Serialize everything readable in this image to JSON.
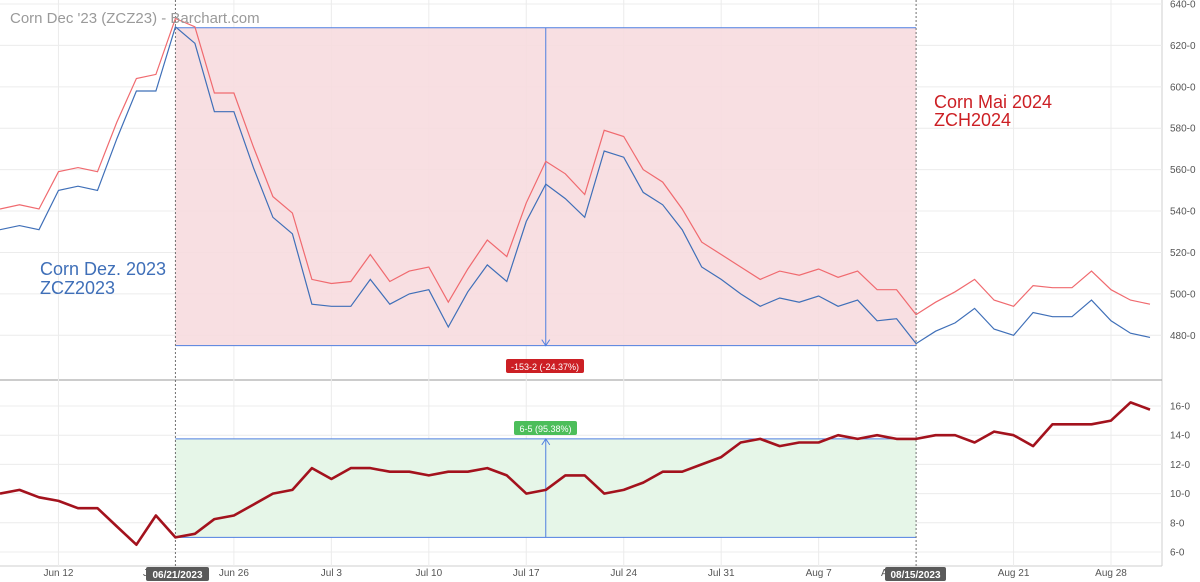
{
  "colors": {
    "zcz": "#3f6fb8",
    "zch": "#f06a6f",
    "spread": "#a3121d",
    "measure": "#4f7fe0",
    "red_zone": "#f7dcdf",
    "green_zone": "#e6f6e8",
    "down_badge": "#cc1f24",
    "up_badge": "#4cbe5a",
    "date_flag": "#5a5a5a"
  },
  "chart_data": [
    {
      "type": "line",
      "title": "Corn Dec '23 (ZCZ23) - Barchart.com",
      "x_labels": [
        "Jun 12",
        "Jun 26",
        "Jul 3",
        "Jul 10",
        "Jul 17",
        "Jul 24",
        "Jul 31",
        "Aug 7",
        "Aug 21",
        "Aug 28"
      ],
      "ylim": [
        470,
        640
      ],
      "y_ticks": [
        "480-0",
        "500-0",
        "520-0",
        "540-0",
        "560-0",
        "580-0",
        "600-0",
        "620-0",
        "640-0"
      ],
      "annotations": {
        "zcz": [
          "Corn Dez. 2023",
          "ZCZ2023"
        ],
        "zch": [
          "Corn Mai 2024",
          "ZCH2024"
        ],
        "change": "-153-2 (-24.37%)"
      },
      "series": [
        {
          "key": "zcz",
          "values": [
            531,
            533,
            531,
            550,
            552,
            550,
            575,
            598,
            598,
            629,
            621,
            588,
            588,
            561,
            537,
            529,
            495,
            494,
            494,
            507,
            495,
            500,
            502,
            484,
            501,
            514,
            506,
            535,
            553,
            546,
            537,
            569,
            566,
            549,
            543,
            531,
            513,
            507,
            500,
            494,
            498,
            496,
            499,
            494,
            497,
            487,
            488,
            476,
            482,
            486,
            493,
            483,
            480,
            491,
            489,
            489,
            497,
            487,
            481,
            479
          ]
        },
        {
          "key": "zch",
          "values": [
            541,
            543,
            541,
            559,
            561,
            559,
            583,
            604,
            606,
            633,
            629,
            597,
            597,
            571,
            547,
            539,
            507,
            505,
            506,
            519,
            506,
            511,
            513,
            496,
            512,
            526,
            518,
            544,
            564,
            558,
            548,
            579,
            576,
            560,
            554,
            541,
            525,
            519,
            513,
            507,
            511,
            509,
            512,
            508,
            511,
            502,
            502,
            490,
            496,
            501,
            507,
            497,
            494,
            504,
            503,
            503,
            511,
            502,
            497,
            495
          ]
        }
      ]
    },
    {
      "type": "line",
      "ylim": [
        6,
        17.5
      ],
      "y_ticks": [
        "6-0",
        "8-0",
        "10-0",
        "12-0",
        "14-0",
        "16-0"
      ],
      "annotations": {
        "change": "6-5 (95.38%)"
      },
      "series": [
        {
          "key": "spread",
          "values": [
            10,
            10.25,
            9.75,
            9.5,
            9,
            9,
            7.75,
            6.5,
            8.5,
            7,
            7.25,
            8.25,
            8.5,
            9.25,
            10,
            10.25,
            11.75,
            11,
            11.75,
            11.75,
            11.5,
            11.5,
            11.25,
            11.5,
            11.5,
            11.75,
            11.25,
            10,
            10.25,
            11.25,
            11.25,
            10,
            10.25,
            10.75,
            11.5,
            11.5,
            12,
            12.5,
            13.5,
            13.75,
            13.25,
            13.5,
            13.5,
            14,
            13.75,
            14,
            13.75,
            13.75,
            14,
            14,
            13.5,
            14.25,
            14,
            13.25,
            14.75,
            14.75,
            14.75,
            15,
            16.25,
            15.75
          ]
        }
      ]
    }
  ],
  "date_markers": [
    "06/21/2023",
    "08/15/2023"
  ],
  "hidden_tick_labels": [
    "J",
    "A"
  ]
}
